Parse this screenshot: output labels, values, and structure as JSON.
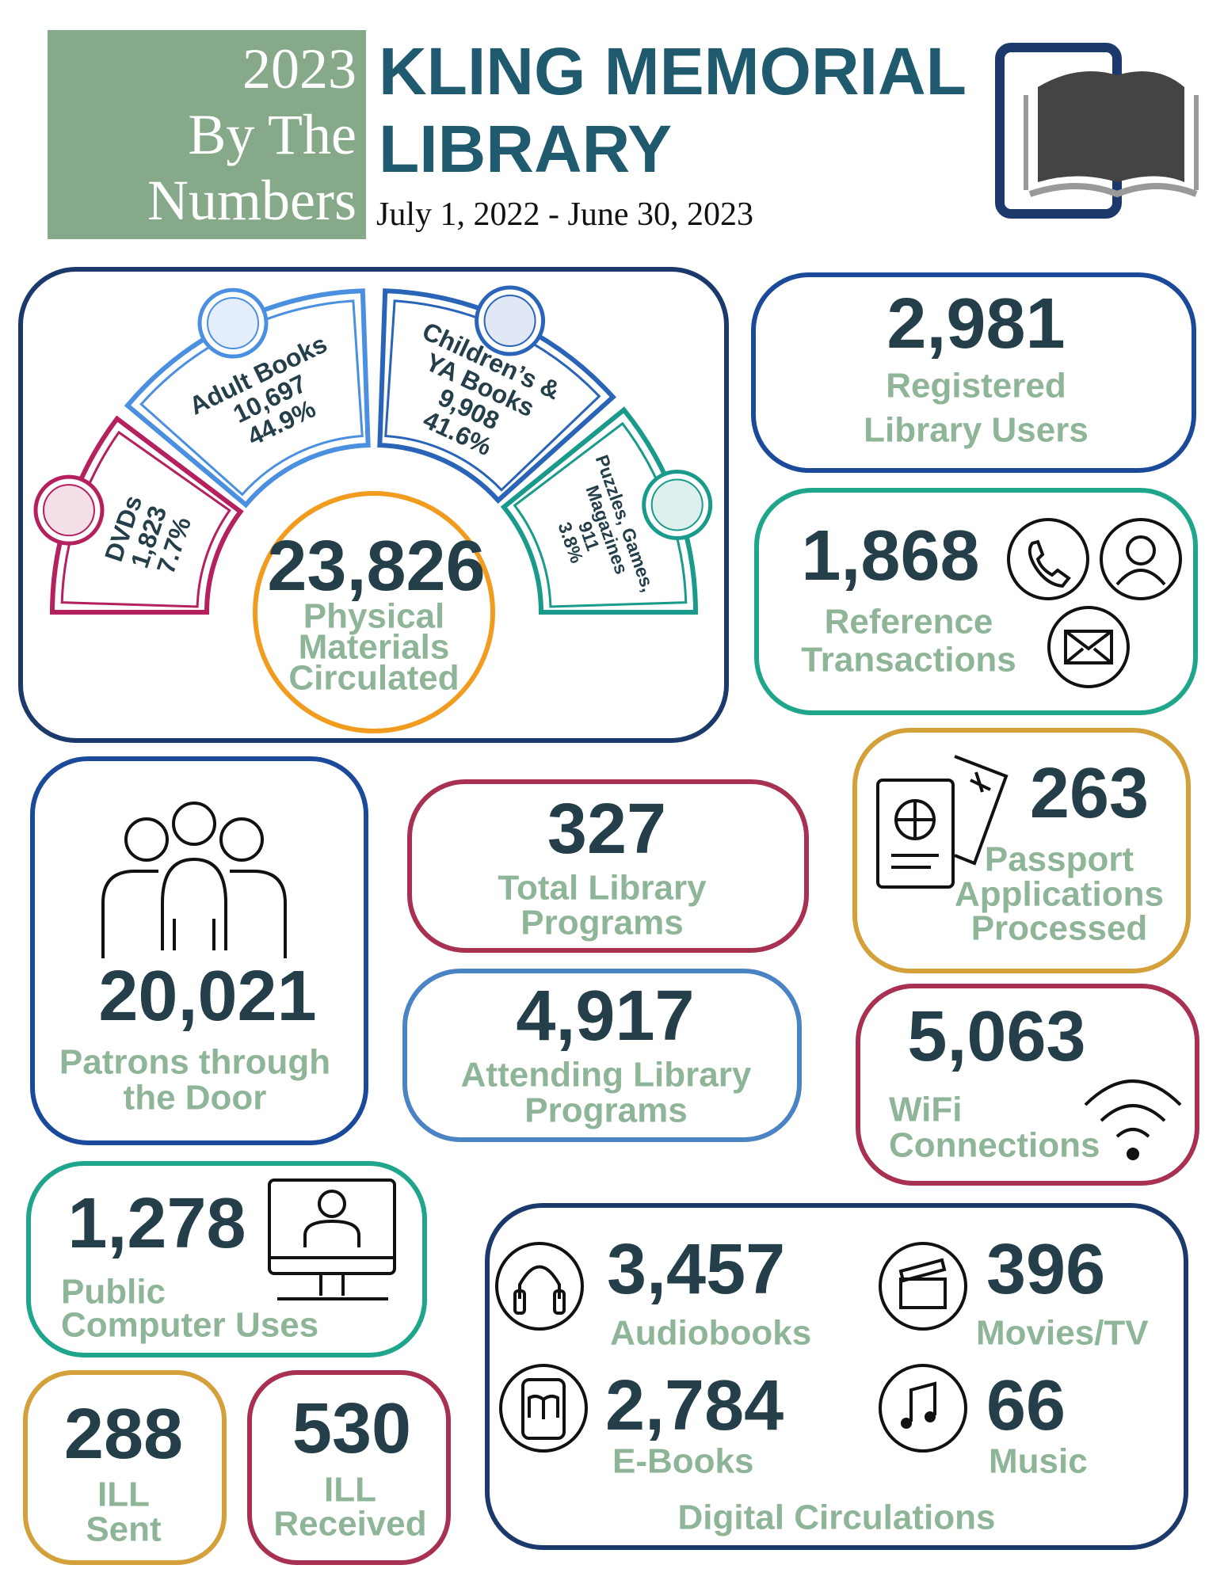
{
  "header": {
    "badge": [
      "2023",
      "By The",
      "Numbers"
    ],
    "title": [
      "KLING MEMORIAL",
      "LIBRARY"
    ],
    "period": "July 1, 2022 - June 30, 2023"
  },
  "circulation": {
    "segments": [
      {
        "label": [
          "DVDs"
        ],
        "value": "1,823",
        "percent": "7.7%"
      },
      {
        "label": [
          "Adult Books"
        ],
        "value": "10,697",
        "percent": "44.9%"
      },
      {
        "label": [
          "Children’s &",
          "YA Books"
        ],
        "value": "9,908",
        "percent": "41.6%"
      },
      {
        "label": [
          "Puzzles, Games,",
          "Magazines"
        ],
        "value": "911",
        "percent": "3.8%"
      }
    ],
    "total": "23,826",
    "caption": [
      "Physical",
      "Materials",
      "Circulated"
    ]
  },
  "stats": {
    "registered": {
      "value": "2,981",
      "caption": [
        "Registered",
        "Library Users"
      ]
    },
    "reference": {
      "value": "1,868",
      "caption": [
        "Reference",
        "Transactions"
      ]
    },
    "patrons": {
      "value": "20,021",
      "caption": [
        "Patrons through",
        "the Door"
      ]
    },
    "programs": {
      "value": "327",
      "caption": [
        "Total Library",
        "Programs"
      ]
    },
    "attending": {
      "value": "4,917",
      "caption": [
        "Attending Library",
        "Programs"
      ]
    },
    "passport": {
      "value": "263",
      "caption": [
        "Passport",
        "Applications",
        "Processed"
      ]
    },
    "wifi": {
      "value": "5,063",
      "caption": [
        "WiFi",
        "Connections"
      ]
    },
    "computer": {
      "value": "1,278",
      "caption": [
        "Public",
        "Computer Uses"
      ]
    },
    "ill_sent": {
      "value": "288",
      "caption": [
        "ILL",
        "Sent"
      ]
    },
    "ill_received": {
      "value": "530",
      "caption": [
        "ILL",
        "Received"
      ]
    }
  },
  "digital": {
    "items": [
      {
        "value": "3,457",
        "caption": "Audiobooks"
      },
      {
        "value": "396",
        "caption": "Movies/TV"
      },
      {
        "value": "2,784",
        "caption": "E-Books"
      },
      {
        "value": "66",
        "caption": "Music"
      }
    ],
    "caption": "Digital Circulations"
  }
}
